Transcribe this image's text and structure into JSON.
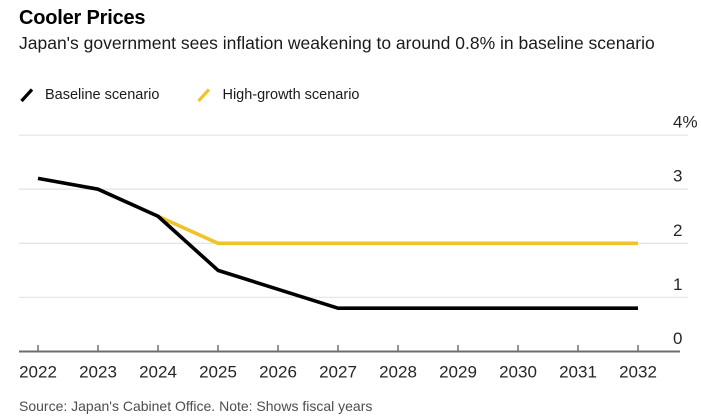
{
  "header": {
    "title": "Cooler Prices",
    "subtitle": "Japan's government sees inflation weakening to around 0.8% in baseline scenario"
  },
  "legend": [
    {
      "label": "Baseline scenario",
      "color": "#000000",
      "icon": "line-slash-icon"
    },
    {
      "label": "High-growth scenario",
      "color": "#f0c32a",
      "icon": "line-slash-icon"
    }
  ],
  "footer": {
    "source_note": "Source: Japan's Cabinet Office. Note: Shows fiscal years"
  },
  "colors": {
    "background": "#ffffff",
    "grid": "#e6e6e6",
    "axis": "#6e6e6e",
    "tick_label": "#262626",
    "baseline_series": "#000000",
    "high_growth_series": "#f0c32a"
  },
  "chart_data": {
    "type": "line",
    "title": "Cooler Prices",
    "xlabel": "",
    "ylabel": "",
    "x": [
      2022,
      2023,
      2024,
      2025,
      2026,
      2027,
      2028,
      2029,
      2030,
      2031,
      2032
    ],
    "x_tick_labels": [
      "2022",
      "2023",
      "2024",
      "2025",
      "2026",
      "2027",
      "2028",
      "2029",
      "2030",
      "2031",
      "2032"
    ],
    "series": [
      {
        "name": "Baseline scenario",
        "color": "#000000",
        "values": [
          3.2,
          3.0,
          2.5,
          1.5,
          1.15,
          0.8,
          0.8,
          0.8,
          0.8,
          0.8,
          0.8
        ]
      },
      {
        "name": "High-growth scenario",
        "color": "#f0c32a",
        "values": [
          null,
          null,
          2.5,
          2.0,
          2.0,
          2.0,
          2.0,
          2.0,
          2.0,
          2.0,
          2.0
        ]
      }
    ],
    "ylim": [
      0,
      4
    ],
    "yticks": [
      {
        "value": 0,
        "label": "0"
      },
      {
        "value": 1,
        "label": "1"
      },
      {
        "value": 2,
        "label": "2"
      },
      {
        "value": 3,
        "label": "3"
      },
      {
        "value": 4,
        "label": "4%"
      }
    ],
    "grid": "horizontal",
    "y_axis_side": "right",
    "legend_position": "top-left",
    "note": "Shows fiscal years"
  }
}
